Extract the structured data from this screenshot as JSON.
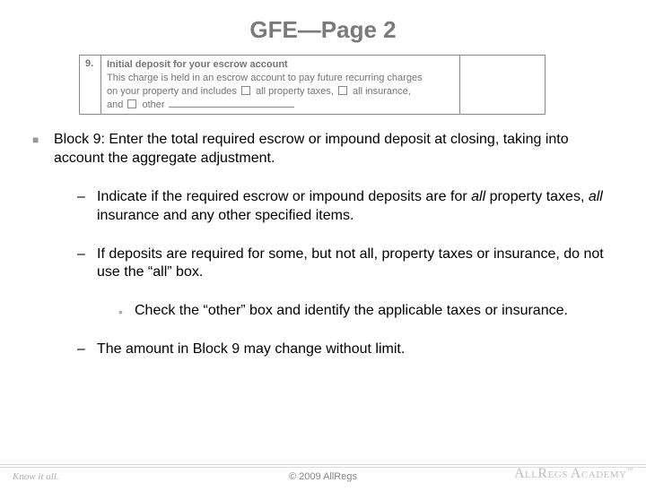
{
  "title": "GFE—Page 2",
  "formBlock": {
    "number": "9.",
    "heading": "Initial deposit for your escrow account",
    "line2a": "This charge is held in an escrow account to pay future recurring charges",
    "line3_prefix": "on your property and includes",
    "cb1_label": "all property taxes,",
    "cb2_label": "all insurance,",
    "line4_prefix": "and",
    "cb3_label": "other"
  },
  "bullets": {
    "l1_text": "Block 9: Enter the total required escrow or impound deposit at closing, taking into account the aggregate adjustment.",
    "l2a_pre": "Indicate if the required escrow or impound deposits are for ",
    "l2a_ital1": "all",
    "l2a_mid": " property taxes, ",
    "l2a_ital2": "all",
    "l2a_post": " insurance and any other specified items.",
    "l2b_text": "If deposits are required for some, but not all, property taxes or insurance, do not use the “all” box.",
    "l3_text": "Check the “other” box and identify the applicable taxes or insurance.",
    "l2c_text": "The amount in Block 9 may change without limit."
  },
  "footer": {
    "tagline": "Know it all.",
    "copyright": "© 2009 AllRegs",
    "logo_a": "AllRegs",
    "logo_b": "Academy",
    "tm": "™"
  }
}
